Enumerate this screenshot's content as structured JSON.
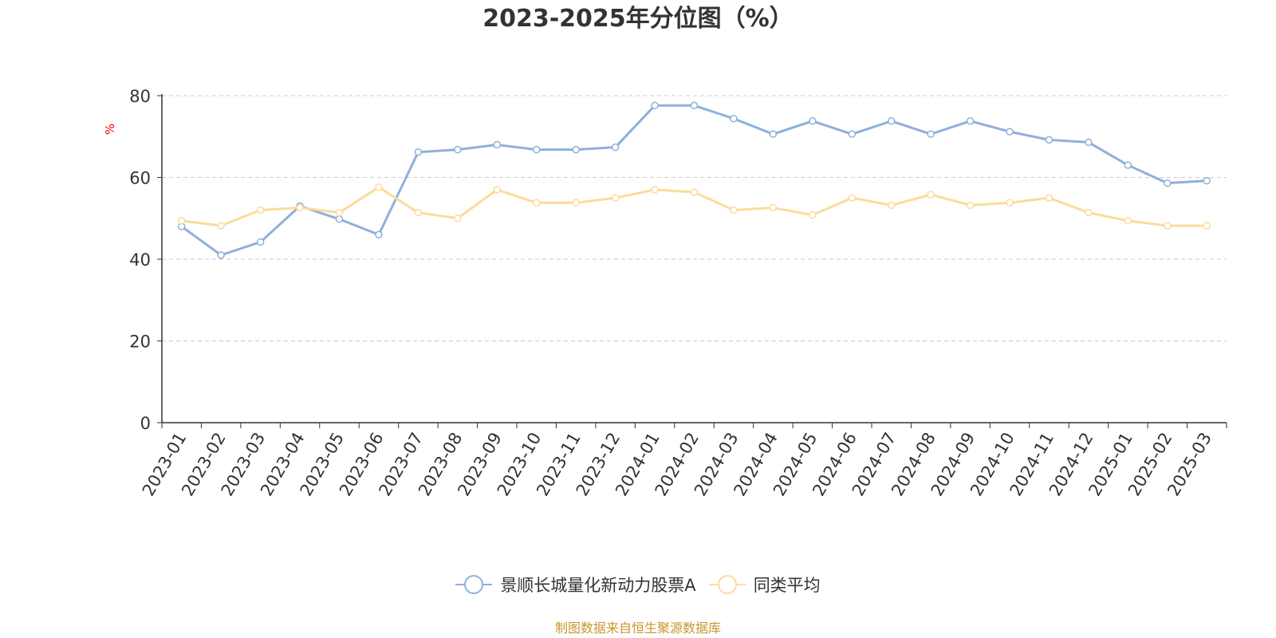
{
  "title": "2023-2025年分位图（%）",
  "source_note": "制图数据来自恒生聚源数据库",
  "colors": {
    "series_a": "#8fb0da",
    "series_b": "#fcdb9c",
    "axis": "#333333",
    "grid": "#cccccc",
    "y_title": "#ff0000"
  },
  "chart_data": {
    "type": "line",
    "title": "2023-2025年分位图（%）",
    "xlabel": "",
    "ylabel": "%",
    "ylim": [
      0,
      80
    ],
    "yticks": [
      0,
      20,
      40,
      60,
      80
    ],
    "grid": true,
    "legend_position": "bottom",
    "categories": [
      "2023-01",
      "2023-02",
      "2023-03",
      "2023-04",
      "2023-05",
      "2023-06",
      "2023-07",
      "2023-08",
      "2023-09",
      "2023-10",
      "2023-11",
      "2023-12",
      "2024-01",
      "2024-02",
      "2024-03",
      "2024-04",
      "2024-05",
      "2024-06",
      "2024-07",
      "2024-08",
      "2024-09",
      "2024-10",
      "2024-11",
      "2024-12",
      "2025-01",
      "2025-02",
      "2025-03"
    ],
    "series": [
      {
        "name": "景顺长城量化新动力股票A",
        "values": [
          48.0,
          41.0,
          44.2,
          53.0,
          49.8,
          46.0,
          66.2,
          66.8,
          68.0,
          66.8,
          66.8,
          67.4,
          77.6,
          77.6,
          74.4,
          70.6,
          73.8,
          70.6,
          73.8,
          70.6,
          73.8,
          71.2,
          69.2,
          68.6,
          63.0,
          58.6,
          59.2
        ]
      },
      {
        "name": "同类平均",
        "values": [
          49.4,
          48.2,
          52.0,
          52.6,
          51.4,
          57.6,
          51.4,
          50.0,
          57.0,
          53.8,
          53.8,
          55.0,
          57.0,
          56.4,
          52.0,
          52.6,
          50.8,
          55.0,
          53.2,
          55.8,
          53.2,
          53.8,
          55.0,
          51.4,
          49.4,
          48.2,
          48.2
        ]
      }
    ]
  }
}
